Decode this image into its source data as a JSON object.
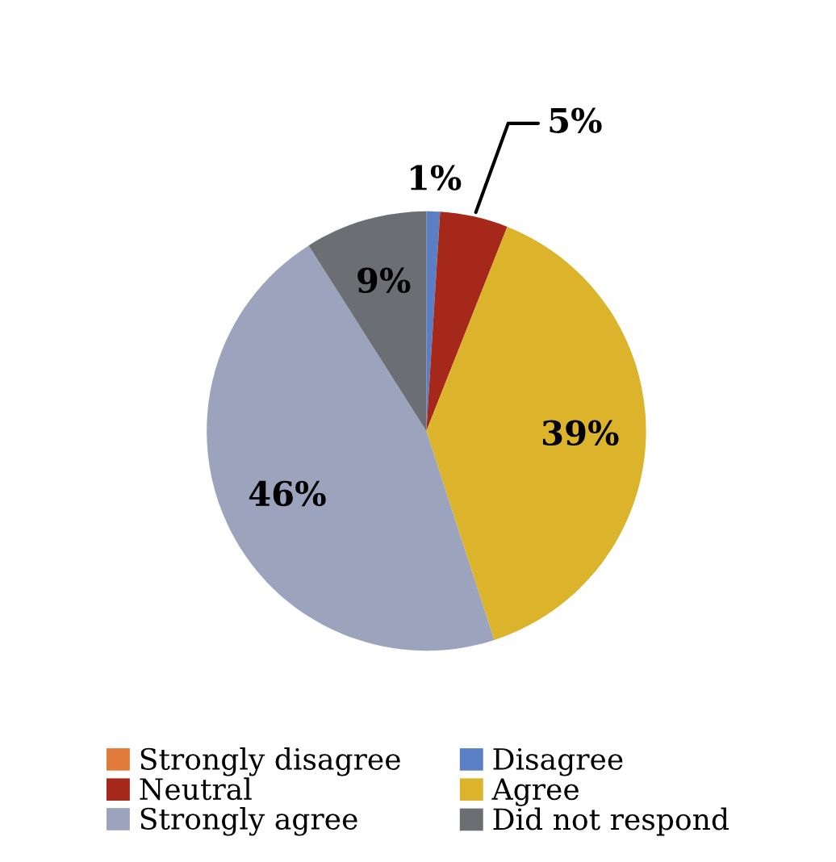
{
  "chart_data": {
    "type": "pie",
    "categories": [
      "Strongly disagree",
      "Disagree",
      "Neutral",
      "Agree",
      "Strongly agree",
      "Did not respond"
    ],
    "values": [
      0,
      1,
      5,
      39,
      46,
      9
    ],
    "value_labels": [
      null,
      "1%",
      "5%",
      "39%",
      "46%",
      "9%"
    ],
    "colors": [
      "#e07b39",
      "#5b7fc4",
      "#a5281b",
      "#dbb42c",
      "#9ca3bd",
      "#6b6e73"
    ],
    "legend": "bottom"
  }
}
